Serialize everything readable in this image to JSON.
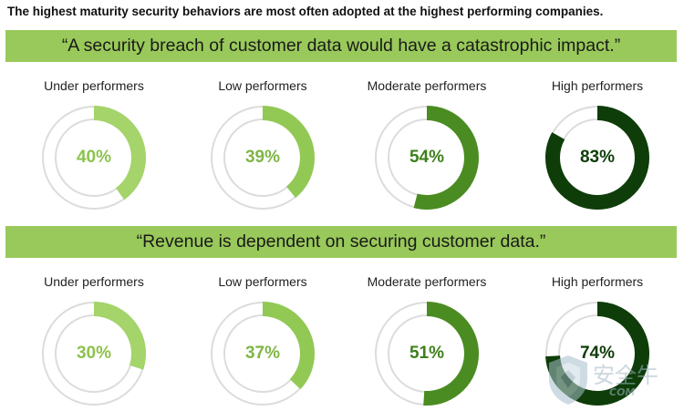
{
  "headline": "The highest maturity security behaviors are most often adopted at the highest performing companies.",
  "style": {
    "banner_bg": "#99c95a",
    "track": "#dcdcdc",
    "colors": {
      "under": "#a4d46a",
      "low": "#92c955",
      "moderate": "#4a8c22",
      "high": "#0e3d09"
    },
    "text_colors": {
      "under": "#8cc24e",
      "low": "#7fb645",
      "moderate": "#3f7f1c",
      "high": "#0e3d09"
    }
  },
  "chart_data": [
    {
      "type": "donut",
      "title": "“A security breach of customer data would have a catastrophic impact.”",
      "categories": [
        "Under performers",
        "Low performers",
        "Moderate performers",
        "High performers"
      ],
      "values": [
        40,
        39,
        54,
        83
      ],
      "labels": [
        "40%",
        "39%",
        "54%",
        "83%"
      ],
      "unit": "%"
    },
    {
      "type": "donut",
      "title": "“Revenue is dependent on securing customer data.”",
      "categories": [
        "Under performers",
        "Low performers",
        "Moderate performers",
        "High performers"
      ],
      "values": [
        30,
        37,
        51,
        74
      ],
      "labels": [
        "30%",
        "37%",
        "51%",
        "74%"
      ],
      "unit": "%"
    }
  ],
  "watermark": {
    "text": "安全牛",
    "sub": "COM",
    "icon": "shield-icon"
  }
}
